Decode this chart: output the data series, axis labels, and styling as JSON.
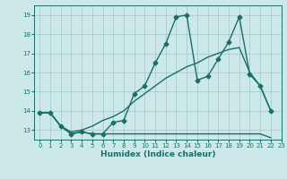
{
  "title": "",
  "xlabel": "Humidex (Indice chaleur)",
  "bg_color": "#cde8e8",
  "grid_color": "#a0c8c8",
  "line_color": "#1a6e6a",
  "xlim": [
    -0.5,
    23
  ],
  "ylim": [
    12.5,
    19.5
  ],
  "xticks": [
    0,
    1,
    2,
    3,
    4,
    5,
    6,
    7,
    8,
    9,
    10,
    11,
    12,
    13,
    14,
    15,
    16,
    17,
    18,
    19,
    20,
    21,
    22,
    23
  ],
  "yticks": [
    13,
    14,
    15,
    16,
    17,
    18,
    19
  ],
  "series": [
    {
      "x": [
        0,
        1,
        2,
        3,
        4,
        5,
        6,
        7,
        8,
        9,
        10,
        11,
        12,
        13,
        14,
        15,
        16,
        17,
        18,
        19,
        20,
        21,
        22
      ],
      "y": [
        13.9,
        13.9,
        13.2,
        12.8,
        12.9,
        12.8,
        12.8,
        13.4,
        13.5,
        14.9,
        15.3,
        16.5,
        17.5,
        18.9,
        19.0,
        15.6,
        15.8,
        16.7,
        17.6,
        18.9,
        15.9,
        15.3,
        14.0
      ],
      "marker": "D",
      "markersize": 2.5,
      "linewidth": 1.0
    },
    {
      "x": [
        0,
        1,
        2,
        3,
        4,
        5,
        6,
        7,
        8,
        9,
        10,
        11,
        12,
        13,
        14,
        15,
        16,
        17,
        18,
        19,
        20,
        21,
        22
      ],
      "y": [
        13.9,
        13.9,
        13.2,
        12.9,
        13.0,
        13.2,
        13.5,
        13.7,
        14.0,
        14.5,
        14.9,
        15.3,
        15.7,
        16.0,
        16.3,
        16.5,
        16.8,
        17.0,
        17.2,
        17.3,
        16.0,
        15.3,
        14.0
      ],
      "marker": null,
      "markersize": 0,
      "linewidth": 1.0
    },
    {
      "x": [
        0,
        1,
        2,
        3,
        4,
        5,
        6,
        7,
        8,
        9,
        10,
        11,
        12,
        13,
        14,
        15,
        16,
        17,
        18,
        19,
        20,
        21,
        22
      ],
      "y": [
        13.9,
        13.9,
        13.2,
        12.8,
        12.9,
        12.8,
        12.8,
        12.8,
        12.8,
        12.8,
        12.8,
        12.8,
        12.8,
        12.8,
        12.8,
        12.8,
        12.8,
        12.8,
        12.8,
        12.8,
        12.8,
        12.8,
        12.6
      ],
      "marker": null,
      "markersize": 0,
      "linewidth": 1.0
    }
  ]
}
